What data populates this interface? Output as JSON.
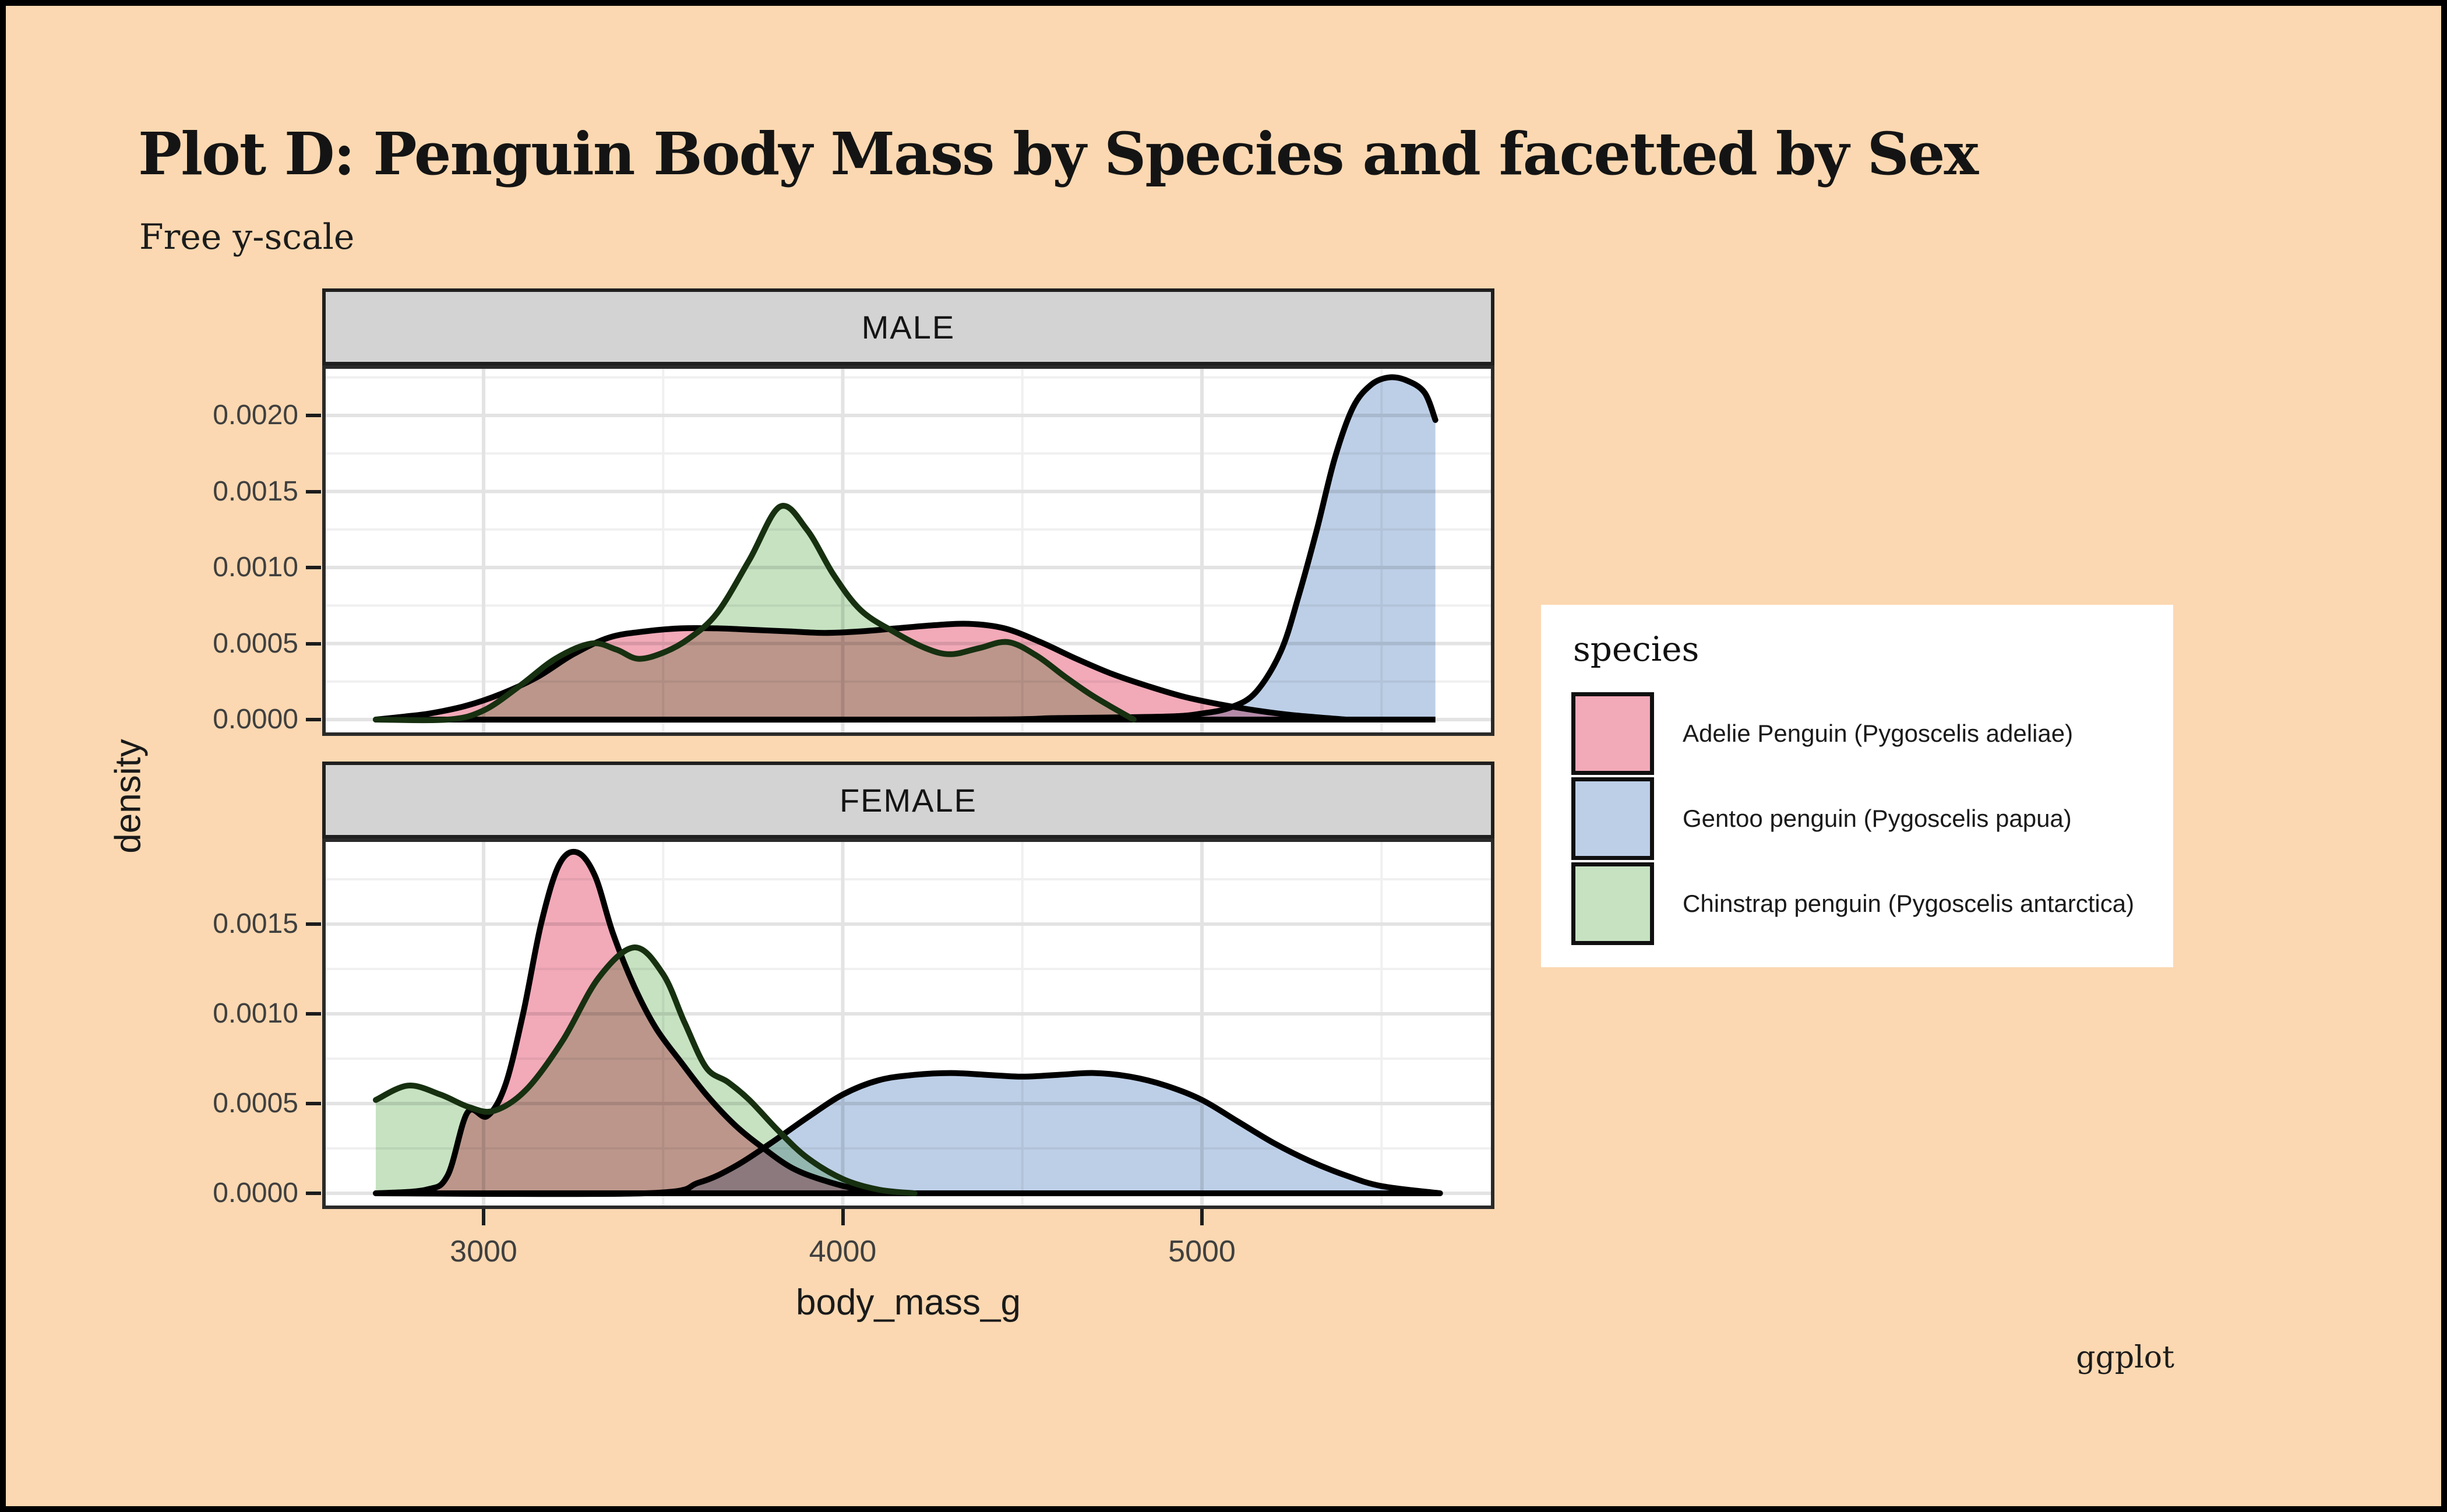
{
  "title": "Plot D: Penguin Body Mass by Species and facetted by Sex",
  "subtitle": "Free y-scale",
  "caption": "ggplot",
  "legend": {
    "title": "species",
    "items": [
      {
        "label": "Adelie Penguin (Pygoscelis adeliae)",
        "swatch": "#F2A9B8"
      },
      {
        "label": "Gentoo penguin (Pygoscelis papua)",
        "swatch": "#BDCFE7"
      },
      {
        "label": "Chinstrap penguin (Pygoscelis antarctica)",
        "swatch": "#C6E2C1"
      }
    ]
  },
  "colors": {
    "background": "#FBD8B1",
    "panel": "#FFFFFF",
    "strip": "#D3D3D3",
    "grid_major": "#E3E3E3",
    "grid_minor": "#F0F0F0",
    "border": "#2A2A2A",
    "adelie_fill": "#F2A9B8",
    "gentoo_fill": "#BDCFE7",
    "chinstrap_fill": "#C6E2C1",
    "adelie_stroke": "#000000",
    "gentoo_stroke": "#000000",
    "chinstrap_stroke": "#163010"
  },
  "chart_data": {
    "type": "area",
    "subtype": "kernel-density",
    "title": "Plot D: Penguin Body Mass by Species and facetted by Sex",
    "subtitle": "Free y-scale",
    "caption": "ggplot",
    "xlabel": "body_mass_g",
    "ylabel": "density",
    "x_ticks": [
      3000,
      4000,
      5000
    ],
    "x_minor": [
      3500,
      4500,
      5500
    ],
    "x_range": [
      2550,
      5815
    ],
    "grid": "on",
    "legend_position": "right",
    "facet_variable": "sex",
    "facets": [
      {
        "label": "MALE",
        "ylim": [
          0,
          0.00233
        ],
        "y_ticks": [
          {
            "v": 0.0,
            "label": "0.0000"
          },
          {
            "v": 0.0005,
            "label": "0.0005"
          },
          {
            "v": 0.001,
            "label": "0.0010"
          },
          {
            "v": 0.0015,
            "label": "0.0015"
          },
          {
            "v": 0.002,
            "label": "0.0020"
          }
        ],
        "y_minor": [
          0.00025,
          0.00075,
          0.00125,
          0.00175,
          0.00225
        ],
        "series": [
          {
            "name": "Adelie Penguin (Pygoscelis adeliae)",
            "clip_end": false,
            "points": [
              [
                2700,
                0
              ],
              [
                2780,
                2e-05
              ],
              [
                2850,
                4e-05
              ],
              [
                2950,
                9e-05
              ],
              [
                3050,
                0.00017
              ],
              [
                3150,
                0.00028
              ],
              [
                3250,
                0.00043
              ],
              [
                3350,
                0.00054
              ],
              [
                3450,
                0.00058
              ],
              [
                3550,
                0.0006
              ],
              [
                3650,
                0.0006
              ],
              [
                3750,
                0.00059
              ],
              [
                3850,
                0.00058
              ],
              [
                3950,
                0.00057
              ],
              [
                4050,
                0.00058
              ],
              [
                4150,
                0.0006
              ],
              [
                4250,
                0.00062
              ],
              [
                4350,
                0.00063
              ],
              [
                4450,
                0.0006
              ],
              [
                4550,
                0.00051
              ],
              [
                4650,
                0.0004
              ],
              [
                4750,
                0.0003
              ],
              [
                4850,
                0.00022
              ],
              [
                4950,
                0.00015
              ],
              [
                5050,
                0.0001
              ],
              [
                5150,
                6e-05
              ],
              [
                5250,
                3e-05
              ],
              [
                5400,
                0
              ]
            ]
          },
          {
            "name": "Gentoo penguin (Pygoscelis papua)",
            "clip_end": true,
            "points": [
              [
                2700,
                0
              ],
              [
                4300,
                0
              ],
              [
                4600,
                1e-05
              ],
              [
                4900,
                2e-05
              ],
              [
                5000,
                4e-05
              ],
              [
                5080,
                8e-05
              ],
              [
                5150,
                0.00018
              ],
              [
                5220,
                0.00045
              ],
              [
                5270,
                0.00082
              ],
              [
                5320,
                0.00125
              ],
              [
                5370,
                0.00172
              ],
              [
                5420,
                0.00205
              ],
              [
                5470,
                0.0022
              ],
              [
                5520,
                0.00225
              ],
              [
                5570,
                0.00223
              ],
              [
                5620,
                0.00215
              ],
              [
                5650,
                0.00197
              ]
            ]
          },
          {
            "name": "Chinstrap penguin (Pygoscelis antarctica)",
            "clip_end": false,
            "points": [
              [
                2700,
                0
              ],
              [
                2900,
                0
              ],
              [
                3000,
                6e-05
              ],
              [
                3100,
                0.00022
              ],
              [
                3200,
                0.0004
              ],
              [
                3300,
                0.0005
              ],
              [
                3370,
                0.00046
              ],
              [
                3430,
                0.0004
              ],
              [
                3500,
                0.00044
              ],
              [
                3570,
                0.00053
              ],
              [
                3650,
                0.0007
              ],
              [
                3740,
                0.00105
              ],
              [
                3825,
                0.0014
              ],
              [
                3900,
                0.00125
              ],
              [
                3975,
                0.00095
              ],
              [
                4050,
                0.00072
              ],
              [
                4140,
                0.00058
              ],
              [
                4230,
                0.00047
              ],
              [
                4300,
                0.00043
              ],
              [
                4380,
                0.00047
              ],
              [
                4460,
                0.00051
              ],
              [
                4540,
                0.00042
              ],
              [
                4620,
                0.00028
              ],
              [
                4700,
                0.00015
              ],
              [
                4810,
                0
              ]
            ]
          }
        ]
      },
      {
        "label": "FEMALE",
        "ylim": [
          0,
          0.00198
        ],
        "y_ticks": [
          {
            "v": 0.0,
            "label": "0.0000"
          },
          {
            "v": 0.0005,
            "label": "0.0005"
          },
          {
            "v": 0.001,
            "label": "0.0010"
          },
          {
            "v": 0.0015,
            "label": "0.0015"
          }
        ],
        "y_minor": [
          0.00025,
          0.00075,
          0.00125,
          0.00175
        ],
        "series": [
          {
            "name": "Adelie Penguin (Pygoscelis adeliae)",
            "clip_end": false,
            "points": [
              [
                2700,
                0
              ],
              [
                2840,
                2e-05
              ],
              [
                2900,
                0.0001
              ],
              [
                2955,
                0.00045
              ],
              [
                3010,
                0.00043
              ],
              [
                3060,
                0.0006
              ],
              [
                3110,
                0.001
              ],
              [
                3160,
                0.0015
              ],
              [
                3210,
                0.00183
              ],
              [
                3260,
                0.0019
              ],
              [
                3310,
                0.00177
              ],
              [
                3360,
                0.00145
              ],
              [
                3420,
                0.00115
              ],
              [
                3480,
                0.00092
              ],
              [
                3550,
                0.00073
              ],
              [
                3620,
                0.00055
              ],
              [
                3700,
                0.00038
              ],
              [
                3780,
                0.00025
              ],
              [
                3860,
                0.00014
              ],
              [
                3950,
                7e-05
              ],
              [
                4050,
                2e-05
              ],
              [
                4160,
                0
              ]
            ]
          },
          {
            "name": "Gentoo penguin (Pygoscelis papua)",
            "clip_end": false,
            "points": [
              [
                2700,
                0
              ],
              [
                3450,
                0
              ],
              [
                3600,
                6e-05
              ],
              [
                3700,
                0.00015
              ],
              [
                3800,
                0.00028
              ],
              [
                3900,
                0.00042
              ],
              [
                4000,
                0.00055
              ],
              [
                4100,
                0.00063
              ],
              [
                4200,
                0.00066
              ],
              [
                4300,
                0.00067
              ],
              [
                4400,
                0.00066
              ],
              [
                4500,
                0.00065
              ],
              [
                4600,
                0.00066
              ],
              [
                4700,
                0.00067
              ],
              [
                4800,
                0.00065
              ],
              [
                4900,
                0.0006
              ],
              [
                5000,
                0.00052
              ],
              [
                5100,
                0.0004
              ],
              [
                5200,
                0.00028
              ],
              [
                5300,
                0.00018
              ],
              [
                5400,
                0.0001
              ],
              [
                5500,
                4e-05
              ],
              [
                5663,
                0
              ]
            ]
          },
          {
            "name": "Chinstrap penguin (Pygoscelis antarctica)",
            "clip_end": false,
            "clip_start": true,
            "points": [
              [
                2700,
                0.00052
              ],
              [
                2790,
                0.0006
              ],
              [
                2880,
                0.00055
              ],
              [
                2960,
                0.00048
              ],
              [
                3030,
                0.00046
              ],
              [
                3120,
                0.00058
              ],
              [
                3220,
                0.00085
              ],
              [
                3320,
                0.0012
              ],
              [
                3420,
                0.00137
              ],
              [
                3500,
                0.00122
              ],
              [
                3560,
                0.00095
              ],
              [
                3620,
                0.0007
              ],
              [
                3680,
                0.00062
              ],
              [
                3740,
                0.00052
              ],
              [
                3820,
                0.00035
              ],
              [
                3900,
                0.0002
              ],
              [
                4000,
                8e-05
              ],
              [
                4100,
                2e-05
              ],
              [
                4200,
                0
              ]
            ]
          }
        ]
      }
    ]
  }
}
